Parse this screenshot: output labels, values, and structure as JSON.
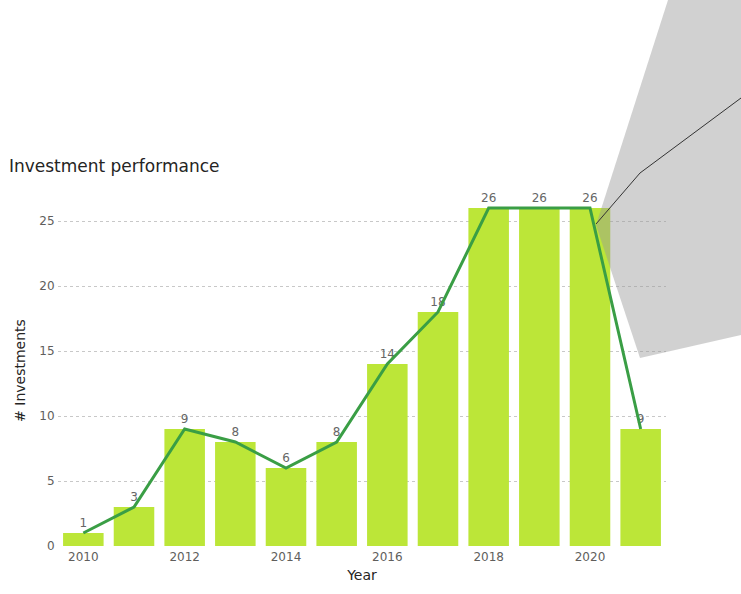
{
  "chart_data": {
    "type": "bar",
    "title": "Investment performance",
    "x_label": "Year",
    "y_label": "# Investments",
    "x": [
      2010,
      2011,
      2012,
      2013,
      2014,
      2015,
      2016,
      2017,
      2018,
      2019,
      2020,
      2021
    ],
    "series": [
      {
        "type": "bar",
        "color": "#bce638",
        "values": [
          1,
          3,
          9,
          8,
          6,
          8,
          14,
          18,
          26,
          26,
          26,
          9
        ]
      },
      {
        "type": "line",
        "color": "#3a9e45",
        "values": [
          1,
          3,
          9,
          8,
          6,
          8,
          14,
          18,
          26,
          26,
          26,
          9
        ]
      }
    ],
    "xlim": [
      2009.5,
      2021.5
    ],
    "xticks": [
      2010,
      2012,
      2014,
      2016,
      2018,
      2020
    ],
    "ylim": [
      0,
      27
    ],
    "yticks": [
      0,
      5,
      10,
      15,
      20,
      25
    ],
    "grid": true,
    "data_labels": true
  }
}
